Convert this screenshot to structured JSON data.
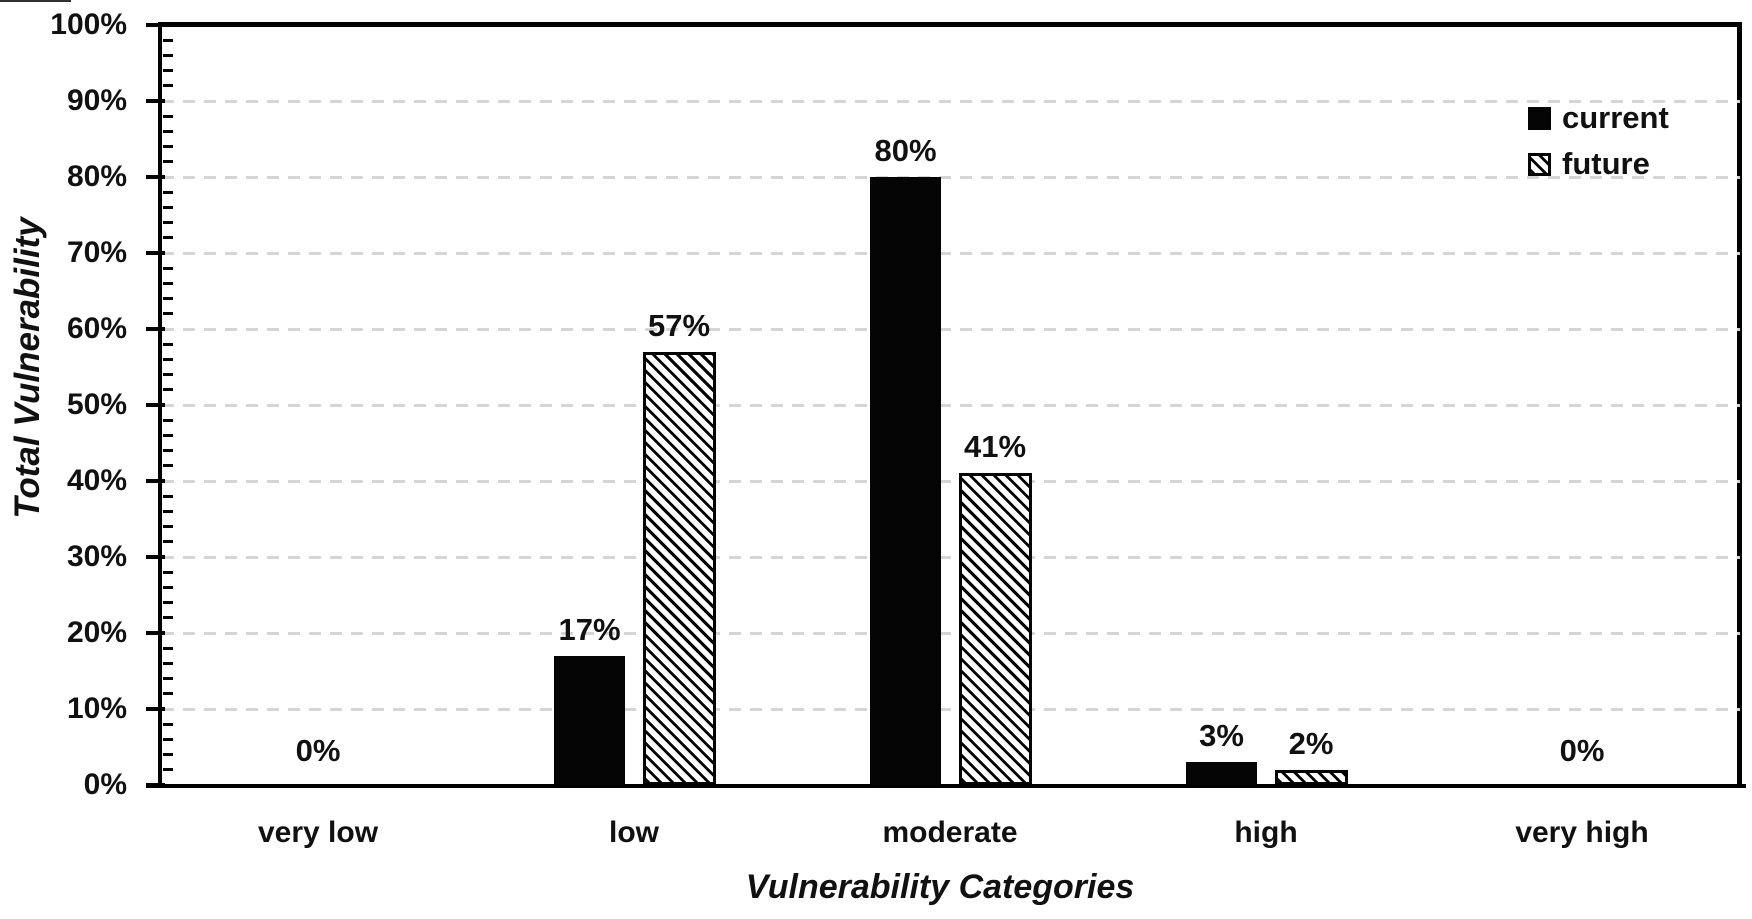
{
  "chart_data": {
    "type": "bar",
    "title": "",
    "categories": [
      "very low",
      "low",
      "moderate",
      "high",
      "very high"
    ],
    "series": [
      {
        "name": "current",
        "values": [
          0,
          17,
          80,
          3,
          0
        ],
        "fill": "solid",
        "color": "#000000"
      },
      {
        "name": "future",
        "values": [
          0,
          57,
          41,
          2,
          0
        ],
        "fill": "diagonal-hatch",
        "color": "#000000"
      }
    ],
    "data_label_format": "{value}%",
    "zero_category_single_label": "0%",
    "xlabel": "Vulnerability Categories",
    "ylabel": "Total Vulnerability",
    "ylim": [
      0,
      100
    ],
    "y_major_step": 10,
    "y_minor_step": 2,
    "y_tick_labels": [
      "0%",
      "10%",
      "20%",
      "30%",
      "40%",
      "50%",
      "60%",
      "70%",
      "80%",
      "90%",
      "100%"
    ],
    "grid": {
      "horizontal": true,
      "style": "dashed",
      "color": "#d5d5d5"
    },
    "legend_position": "top-right"
  },
  "colors": {
    "background": "#ffffff",
    "bar_fill": "#000000",
    "grid": "#d5d5d5",
    "text": "#111111",
    "plot_border": "#000000"
  }
}
